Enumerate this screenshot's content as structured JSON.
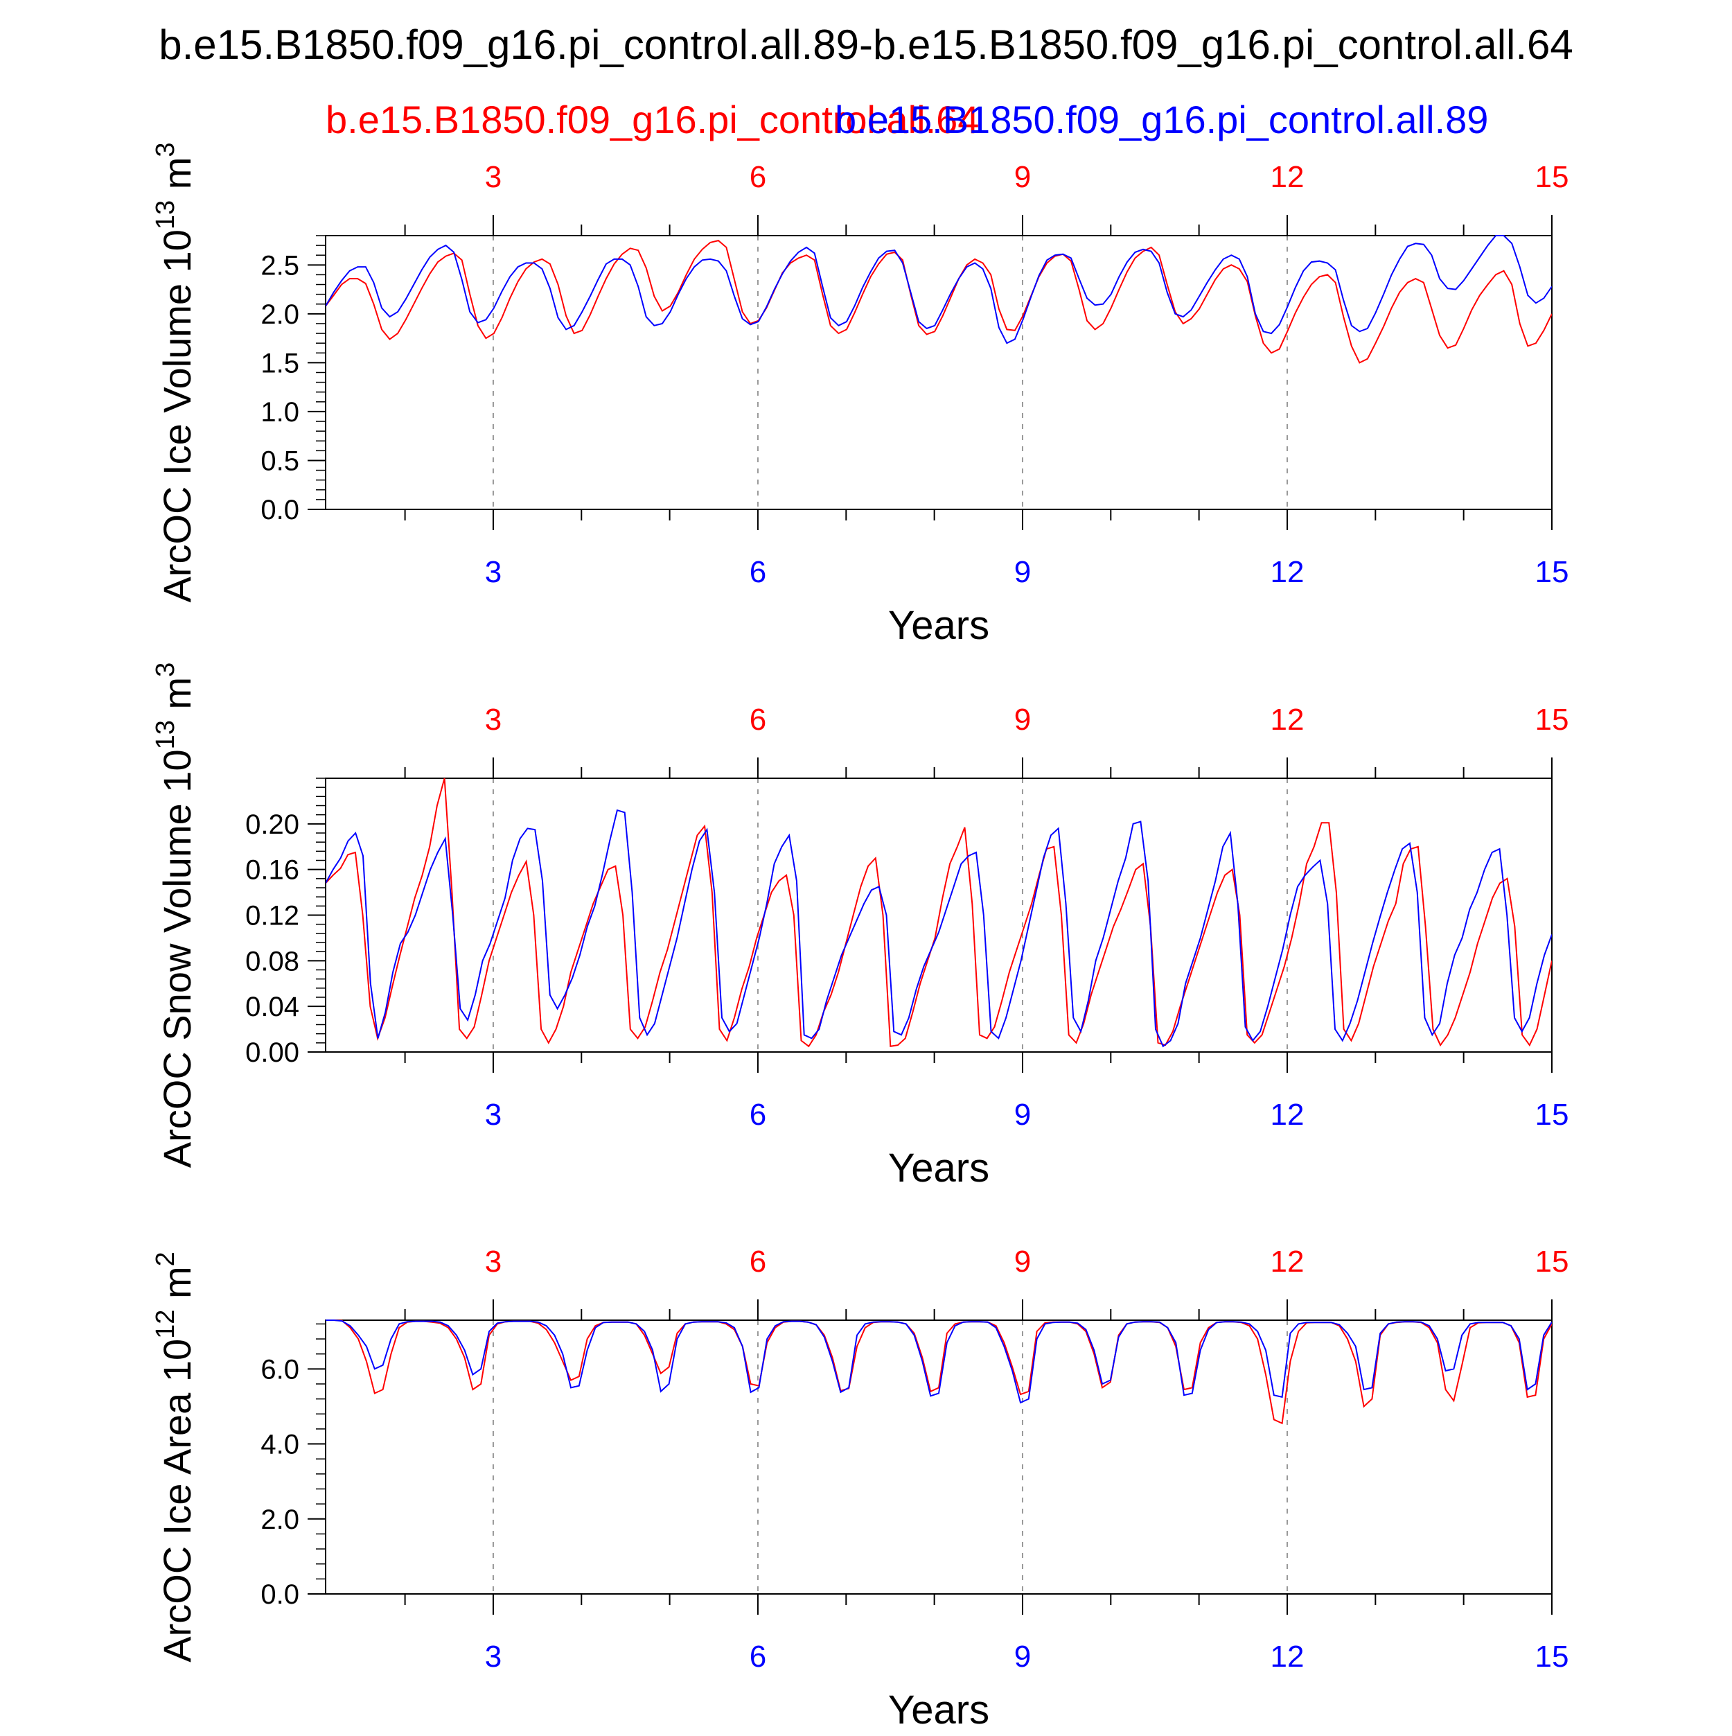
{
  "title": "b.e15.B1850.f09_g16.pi_control.all.89-b.e15.B1850.f09_g16.pi_control.all.64",
  "colors": {
    "case1": "#ff0000",
    "case2": "#0000ff"
  },
  "chart_data": [
    {
      "type": "line",
      "ylabel": "ArcOC Ice Volume",
      "units_base": "10",
      "units_exp": "13",
      "units_var": "m",
      "units_pow": "3",
      "xlabel": "Years",
      "xlim": [
        1.1,
        15
      ],
      "ylim": [
        0,
        2.8
      ],
      "yticks": [
        "0.0",
        "0.5",
        "1.0",
        "1.5",
        "2.0",
        "2.5"
      ],
      "xticks_top": [
        "3",
        "6",
        "9",
        "12",
        "15"
      ],
      "xticks_bottom": [
        "3",
        "6",
        "9",
        "12",
        "15"
      ],
      "series": [
        {
          "name": "b.e15.B1850.f09_g16.pi_control.all.64",
          "color": "#ff0000",
          "values": [
            2.08,
            2.19,
            2.3,
            2.36,
            2.36,
            2.31,
            2.1,
            1.84,
            1.74,
            1.8,
            1.94,
            2.1,
            2.26,
            2.41,
            2.53,
            2.59,
            2.62,
            2.55,
            2.2,
            1.88,
            1.75,
            1.8,
            1.96,
            2.16,
            2.33,
            2.46,
            2.53,
            2.56,
            2.51,
            2.3,
            1.98,
            1.8,
            1.83,
            1.99,
            2.18,
            2.36,
            2.51,
            2.61,
            2.67,
            2.65,
            2.47,
            2.18,
            2.03,
            2.08,
            2.22,
            2.4,
            2.56,
            2.66,
            2.73,
            2.75,
            2.68,
            2.35,
            2.02,
            1.9,
            1.93,
            2.06,
            2.24,
            2.42,
            2.52,
            2.57,
            2.6,
            2.55,
            2.2,
            1.88,
            1.8,
            1.84,
            2.01,
            2.2,
            2.38,
            2.51,
            2.61,
            2.63,
            2.55,
            2.2,
            1.88,
            1.79,
            1.82,
            1.98,
            2.17,
            2.36,
            2.5,
            2.56,
            2.52,
            2.4,
            2.05,
            1.84,
            1.83,
            1.98,
            2.18,
            2.38,
            2.52,
            2.59,
            2.61,
            2.54,
            2.25,
            1.93,
            1.84,
            1.9,
            2.06,
            2.25,
            2.43,
            2.57,
            2.64,
            2.68,
            2.6,
            2.3,
            2.02,
            1.9,
            1.95,
            2.05,
            2.2,
            2.35,
            2.46,
            2.5,
            2.46,
            2.33,
            1.98,
            1.7,
            1.6,
            1.64,
            1.82,
            2.01,
            2.17,
            2.3,
            2.38,
            2.4,
            2.32,
            1.97,
            1.67,
            1.5,
            1.54,
            1.7,
            1.87,
            2.06,
            2.22,
            2.32,
            2.36,
            2.32,
            2.05,
            1.78,
            1.65,
            1.68,
            1.85,
            2.04,
            2.19,
            2.3,
            2.4,
            2.44,
            2.3,
            1.9,
            1.67,
            1.7,
            1.83,
            2.0
          ]
        },
        {
          "name": "b.e15.B1850.f09_g16.pi_control.all.89",
          "color": "#0000ff",
          "values": [
            2.08,
            2.22,
            2.34,
            2.44,
            2.48,
            2.48,
            2.32,
            2.06,
            1.97,
            2.02,
            2.15,
            2.3,
            2.45,
            2.58,
            2.66,
            2.7,
            2.63,
            2.35,
            2.02,
            1.91,
            1.94,
            2.06,
            2.23,
            2.38,
            2.48,
            2.52,
            2.52,
            2.46,
            2.26,
            1.96,
            1.84,
            1.88,
            2.02,
            2.18,
            2.35,
            2.51,
            2.56,
            2.56,
            2.5,
            2.28,
            1.97,
            1.88,
            1.9,
            2.02,
            2.2,
            2.36,
            2.48,
            2.55,
            2.56,
            2.54,
            2.44,
            2.18,
            1.95,
            1.89,
            1.92,
            2.07,
            2.25,
            2.41,
            2.54,
            2.63,
            2.68,
            2.62,
            2.28,
            1.96,
            1.88,
            1.92,
            2.08,
            2.27,
            2.43,
            2.57,
            2.64,
            2.65,
            2.52,
            2.22,
            1.92,
            1.85,
            1.88,
            2.04,
            2.21,
            2.36,
            2.48,
            2.52,
            2.46,
            2.26,
            1.86,
            1.7,
            1.74,
            1.94,
            2.17,
            2.39,
            2.55,
            2.6,
            2.61,
            2.57,
            2.36,
            2.16,
            2.09,
            2.1,
            2.2,
            2.38,
            2.53,
            2.63,
            2.66,
            2.64,
            2.52,
            2.22,
            2.0,
            1.97,
            2.04,
            2.18,
            2.32,
            2.45,
            2.56,
            2.6,
            2.56,
            2.38,
            2.0,
            1.82,
            1.8,
            1.89,
            2.07,
            2.27,
            2.44,
            2.53,
            2.54,
            2.52,
            2.45,
            2.14,
            1.88,
            1.82,
            1.85,
            2.01,
            2.2,
            2.4,
            2.56,
            2.69,
            2.72,
            2.71,
            2.6,
            2.36,
            2.26,
            2.25,
            2.34,
            2.46,
            2.58,
            2.7,
            2.8,
            2.82,
            2.72,
            2.48,
            2.19,
            2.11,
            2.16,
            2.28
          ]
        }
      ]
    },
    {
      "type": "line",
      "ylabel": "ArcOC Snow Volume",
      "units_base": "10",
      "units_exp": "13",
      "units_var": "m",
      "units_pow": "3",
      "xlabel": "Years",
      "xlim": [
        1.1,
        15
      ],
      "ylim": [
        0,
        0.24
      ],
      "yticks": [
        "0.00",
        "0.04",
        "0.08",
        "0.12",
        "0.16",
        "0.20"
      ],
      "xticks_top": [
        "3",
        "6",
        "9",
        "12",
        "15"
      ],
      "xticks_bottom": [
        "3",
        "6",
        "9",
        "12",
        "15"
      ],
      "series": [
        {
          "name": "b.e15.B1850.f09_g16.pi_control.all.64",
          "color": "#ff0000",
          "values": [
            0.148,
            0.155,
            0.161,
            0.173,
            0.175,
            0.12,
            0.04,
            0.012,
            0.03,
            0.058,
            0.085,
            0.11,
            0.135,
            0.155,
            0.18,
            0.216,
            0.24,
            0.14,
            0.02,
            0.012,
            0.022,
            0.05,
            0.08,
            0.1,
            0.12,
            0.14,
            0.155,
            0.167,
            0.12,
            0.02,
            0.008,
            0.02,
            0.04,
            0.07,
            0.09,
            0.11,
            0.13,
            0.145,
            0.16,
            0.163,
            0.12,
            0.02,
            0.012,
            0.022,
            0.045,
            0.07,
            0.09,
            0.115,
            0.14,
            0.165,
            0.19,
            0.198,
            0.14,
            0.02,
            0.01,
            0.03,
            0.055,
            0.075,
            0.1,
            0.12,
            0.14,
            0.15,
            0.155,
            0.12,
            0.01,
            0.005,
            0.015,
            0.035,
            0.05,
            0.07,
            0.095,
            0.12,
            0.145,
            0.163,
            0.17,
            0.12,
            0.005,
            0.006,
            0.012,
            0.035,
            0.06,
            0.08,
            0.1,
            0.135,
            0.165,
            0.18,
            0.197,
            0.13,
            0.015,
            0.012,
            0.022,
            0.045,
            0.07,
            0.09,
            0.11,
            0.13,
            0.155,
            0.178,
            0.18,
            0.12,
            0.015,
            0.008,
            0.025,
            0.05,
            0.07,
            0.09,
            0.11,
            0.125,
            0.142,
            0.16,
            0.165,
            0.11,
            0.008,
            0.006,
            0.018,
            0.04,
            0.06,
            0.08,
            0.1,
            0.12,
            0.14,
            0.155,
            0.16,
            0.12,
            0.015,
            0.008,
            0.015,
            0.035,
            0.055,
            0.075,
            0.1,
            0.13,
            0.165,
            0.18,
            0.201,
            0.201,
            0.14,
            0.02,
            0.01,
            0.025,
            0.05,
            0.075,
            0.095,
            0.115,
            0.13,
            0.165,
            0.178,
            0.18,
            0.11,
            0.02,
            0.006,
            0.015,
            0.03,
            0.05,
            0.07,
            0.095,
            0.115,
            0.135,
            0.148,
            0.152,
            0.11,
            0.015,
            0.006,
            0.02,
            0.05,
            0.08
          ]
        },
        {
          "name": "b.e15.B1850.f09_g16.pi_control.all.89",
          "color": "#0000ff",
          "values": [
            0.148,
            0.16,
            0.17,
            0.185,
            0.192,
            0.172,
            0.06,
            0.012,
            0.035,
            0.07,
            0.095,
            0.105,
            0.12,
            0.14,
            0.16,
            0.175,
            0.187,
            0.12,
            0.038,
            0.028,
            0.05,
            0.08,
            0.095,
            0.115,
            0.135,
            0.168,
            0.187,
            0.196,
            0.195,
            0.15,
            0.05,
            0.038,
            0.05,
            0.065,
            0.085,
            0.11,
            0.128,
            0.155,
            0.185,
            0.212,
            0.21,
            0.14,
            0.03,
            0.015,
            0.025,
            0.05,
            0.075,
            0.1,
            0.13,
            0.16,
            0.185,
            0.195,
            0.14,
            0.03,
            0.018,
            0.025,
            0.05,
            0.075,
            0.1,
            0.13,
            0.165,
            0.18,
            0.19,
            0.15,
            0.015,
            0.012,
            0.02,
            0.045,
            0.065,
            0.085,
            0.1,
            0.115,
            0.13,
            0.142,
            0.145,
            0.12,
            0.018,
            0.015,
            0.03,
            0.055,
            0.075,
            0.09,
            0.105,
            0.125,
            0.145,
            0.165,
            0.172,
            0.175,
            0.12,
            0.018,
            0.012,
            0.03,
            0.055,
            0.08,
            0.11,
            0.14,
            0.17,
            0.19,
            0.196,
            0.13,
            0.03,
            0.018,
            0.045,
            0.08,
            0.1,
            0.125,
            0.15,
            0.17,
            0.2,
            0.202,
            0.15,
            0.02,
            0.005,
            0.01,
            0.025,
            0.06,
            0.08,
            0.1,
            0.125,
            0.15,
            0.18,
            0.192,
            0.13,
            0.022,
            0.01,
            0.018,
            0.04,
            0.065,
            0.09,
            0.12,
            0.145,
            0.155,
            0.162,
            0.168,
            0.13,
            0.02,
            0.01,
            0.025,
            0.045,
            0.07,
            0.095,
            0.118,
            0.14,
            0.16,
            0.178,
            0.183,
            0.14,
            0.03,
            0.015,
            0.025,
            0.06,
            0.085,
            0.1,
            0.125,
            0.14,
            0.16,
            0.175,
            0.178,
            0.12,
            0.03,
            0.018,
            0.03,
            0.06,
            0.085,
            0.103
          ]
        }
      ]
    },
    {
      "type": "line",
      "ylabel": "ArcOC Ice Area",
      "units_base": "10",
      "units_exp": "12",
      "units_var": "m",
      "units_pow": "2",
      "xlabel": "Years",
      "xlim": [
        1.1,
        15
      ],
      "ylim": [
        0,
        7.3
      ],
      "yticks": [
        "0.0",
        "2.0",
        "4.0",
        "6.0"
      ],
      "xticks_top": [
        "3",
        "6",
        "9",
        "12",
        "15"
      ],
      "xticks_bottom": [
        "3",
        "6",
        "9",
        "12",
        "15"
      ],
      "series": [
        {
          "name": "b.e15.B1850.f09_g16.pi_control.all.64",
          "color": "#ff0000",
          "values": [
            7.3,
            7.3,
            7.29,
            7.1,
            6.8,
            6.2,
            5.35,
            5.45,
            6.4,
            7.1,
            7.25,
            7.27,
            7.27,
            7.25,
            7.22,
            7.1,
            6.8,
            6.3,
            5.45,
            5.6,
            6.9,
            7.2,
            7.26,
            7.27,
            7.27,
            7.27,
            7.22,
            7.05,
            6.7,
            6.2,
            5.7,
            5.8,
            6.8,
            7.15,
            7.24,
            7.25,
            7.25,
            7.25,
            7.2,
            6.9,
            6.4,
            5.88,
            6.05,
            6.95,
            7.2,
            7.25,
            7.26,
            7.26,
            7.26,
            7.2,
            7.05,
            6.6,
            5.6,
            5.55,
            6.7,
            7.1,
            7.25,
            7.27,
            7.27,
            7.25,
            7.18,
            6.9,
            6.3,
            5.42,
            5.48,
            6.6,
            7.1,
            7.24,
            7.26,
            7.26,
            7.25,
            7.2,
            6.95,
            6.3,
            5.4,
            5.5,
            6.95,
            7.2,
            7.25,
            7.26,
            7.26,
            7.25,
            7.15,
            6.7,
            6.05,
            5.32,
            5.4,
            7.0,
            7.23,
            7.25,
            7.25,
            7.25,
            7.2,
            7.0,
            6.4,
            5.5,
            5.65,
            6.9,
            7.2,
            7.25,
            7.26,
            7.26,
            7.24,
            7.1,
            6.6,
            5.45,
            5.5,
            6.7,
            7.1,
            7.24,
            7.26,
            7.26,
            7.24,
            7.15,
            6.8,
            5.85,
            4.65,
            4.55,
            6.2,
            7.0,
            7.23,
            7.24,
            7.24,
            7.24,
            7.15,
            6.8,
            6.2,
            5.0,
            5.2,
            6.9,
            7.2,
            7.24,
            7.26,
            7.26,
            7.24,
            7.1,
            6.7,
            5.45,
            5.15,
            6.1,
            7.1,
            7.23,
            7.24,
            7.24,
            7.24,
            7.15,
            6.7,
            5.25,
            5.3,
            6.8,
            7.2
          ]
        },
        {
          "name": "b.e15.B1850.f09_g16.pi_control.all.89",
          "color": "#0000ff",
          "values": [
            7.3,
            7.3,
            7.28,
            7.15,
            6.9,
            6.6,
            6.0,
            6.1,
            6.8,
            7.2,
            7.26,
            7.27,
            7.27,
            7.27,
            7.25,
            7.15,
            6.9,
            6.5,
            5.85,
            6.0,
            7.0,
            7.22,
            7.26,
            7.27,
            7.27,
            7.27,
            7.25,
            7.15,
            6.9,
            6.4,
            5.5,
            5.55,
            6.5,
            7.1,
            7.24,
            7.25,
            7.25,
            7.25,
            7.2,
            7.0,
            6.5,
            5.4,
            5.6,
            6.8,
            7.2,
            7.25,
            7.26,
            7.26,
            7.26,
            7.23,
            7.1,
            6.6,
            5.38,
            5.5,
            6.8,
            7.15,
            7.26,
            7.27,
            7.27,
            7.25,
            7.18,
            6.85,
            6.2,
            5.38,
            5.5,
            6.9,
            7.2,
            7.25,
            7.26,
            7.26,
            7.25,
            7.2,
            6.9,
            6.2,
            5.28,
            5.35,
            6.7,
            7.15,
            7.25,
            7.26,
            7.26,
            7.25,
            7.1,
            6.6,
            5.95,
            5.1,
            5.2,
            6.8,
            7.2,
            7.24,
            7.25,
            7.25,
            7.22,
            7.05,
            6.5,
            5.6,
            5.7,
            6.85,
            7.2,
            7.25,
            7.26,
            7.26,
            7.25,
            7.1,
            6.7,
            5.3,
            5.35,
            6.5,
            7.05,
            7.24,
            7.26,
            7.26,
            7.25,
            7.2,
            7.0,
            6.5,
            5.3,
            5.25,
            6.95,
            7.2,
            7.24,
            7.24,
            7.24,
            7.24,
            7.18,
            6.95,
            6.6,
            5.45,
            5.5,
            6.95,
            7.2,
            7.25,
            7.26,
            7.26,
            7.25,
            7.15,
            6.8,
            5.95,
            6.0,
            6.9,
            7.2,
            7.24,
            7.24,
            7.24,
            7.24,
            7.15,
            6.8,
            5.45,
            5.6,
            6.9,
            7.25
          ]
        }
      ]
    }
  ]
}
